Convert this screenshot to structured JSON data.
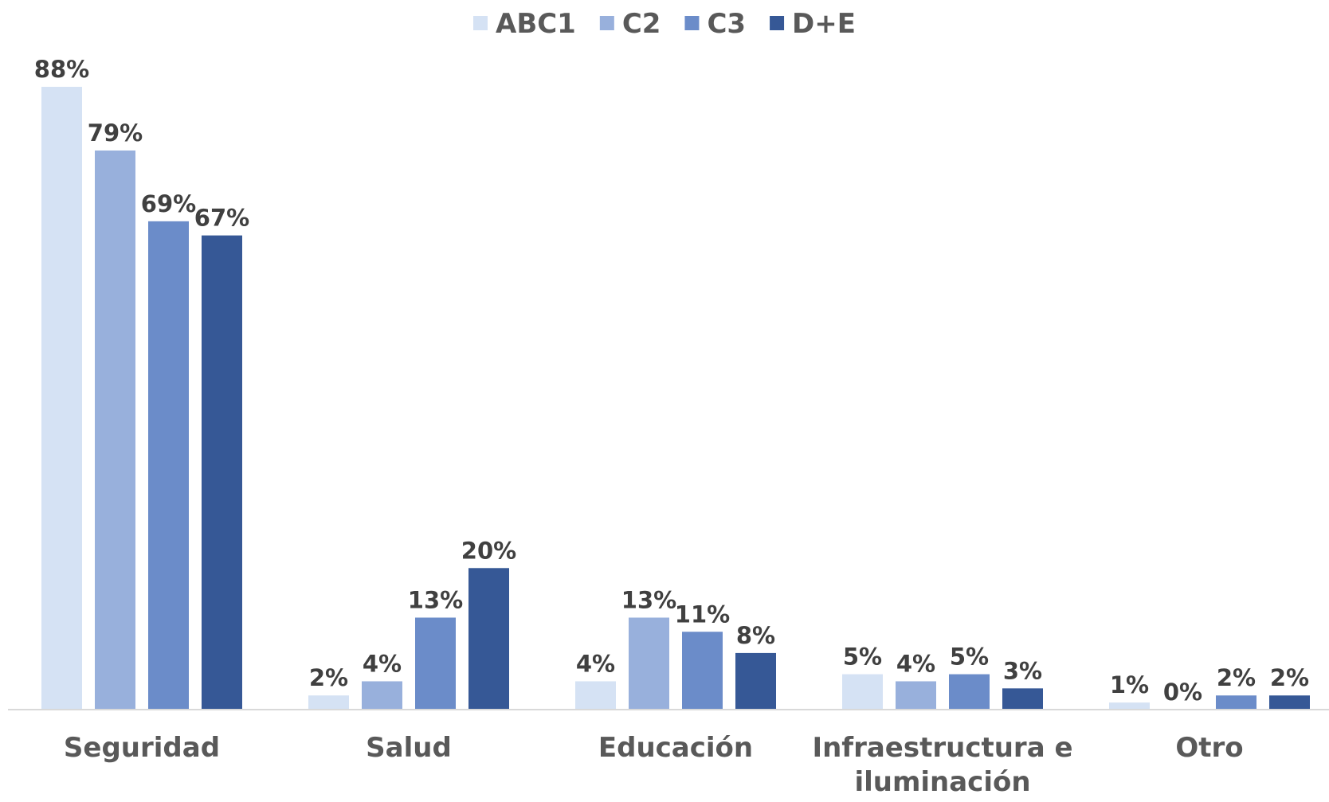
{
  "chart_data": {
    "type": "bar",
    "title": "",
    "xlabel": "",
    "ylabel": "",
    "ylim": [
      0,
      88
    ],
    "grid": false,
    "legend_position": "top",
    "categories": [
      [
        "Seguridad"
      ],
      [
        "Salud"
      ],
      [
        "Educación"
      ],
      [
        "Infraestructura e",
        "iluminación"
      ],
      [
        "Otro"
      ]
    ],
    "series": [
      {
        "name": "ABC1",
        "color": "#d5e2f4",
        "values": [
          88,
          2,
          4,
          5,
          1
        ],
        "labels": [
          "88%",
          "2%",
          "4%",
          "5%",
          "1%"
        ]
      },
      {
        "name": "C2",
        "color": "#98b0dc",
        "values": [
          79,
          4,
          13,
          4,
          0
        ],
        "labels": [
          "79%",
          "4%",
          "13%",
          "4%",
          "0%"
        ]
      },
      {
        "name": "C3",
        "color": "#6b8cc9",
        "values": [
          69,
          13,
          11,
          5,
          2
        ],
        "labels": [
          "69%",
          "13%",
          "11%",
          "5%",
          "2%"
        ]
      },
      {
        "name": "D+E",
        "color": "#365896",
        "values": [
          67,
          20,
          8,
          3,
          2
        ],
        "labels": [
          "67%",
          "20%",
          "8%",
          "3%",
          "2%"
        ]
      }
    ]
  }
}
